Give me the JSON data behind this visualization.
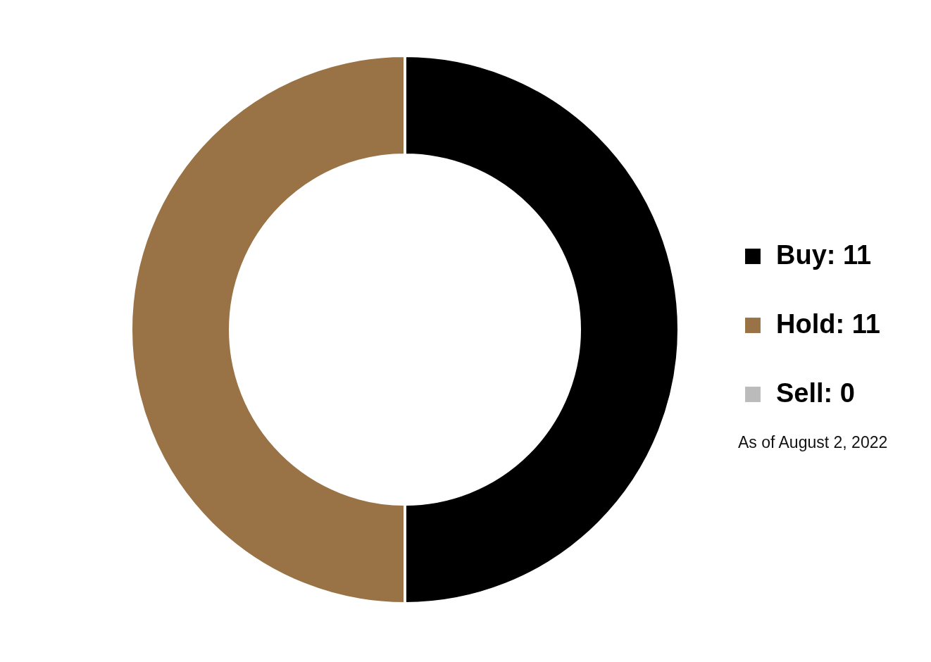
{
  "chart_data": {
    "type": "donut",
    "categories": [
      "Buy: 11",
      "Hold: 11",
      "Sell: 0"
    ],
    "values": [
      11,
      11,
      0
    ],
    "colors": [
      "#000000",
      "#997245",
      "#bbbbbb"
    ],
    "legend": "right",
    "annotations": [
      "As of August 2, 2022"
    ]
  }
}
